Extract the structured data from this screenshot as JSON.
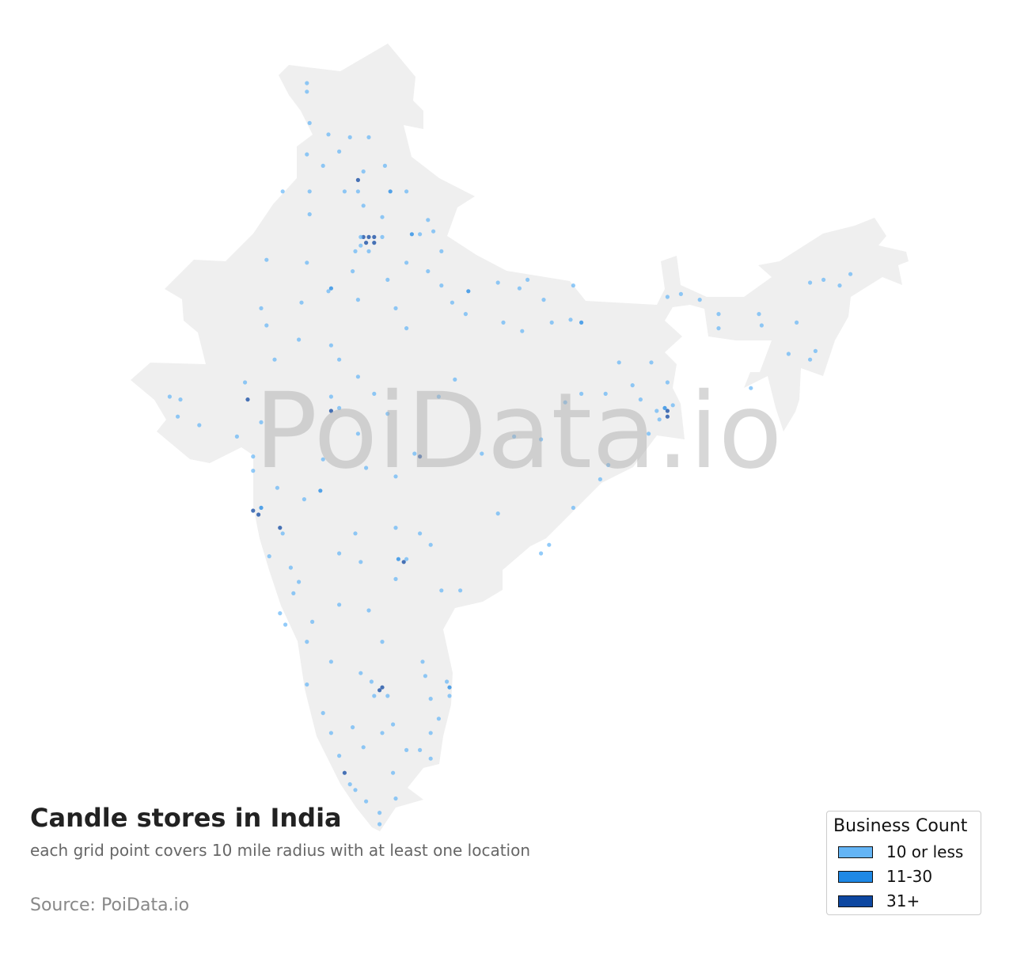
{
  "title": "Candle stores in India",
  "subtitle": "each grid point covers 10 mile radius with at least one location",
  "source": "Source: PoiData.io",
  "watermark": "PoiData.io",
  "colors": {
    "land": "#efefef",
    "level1": "#64b5f6",
    "level2": "#1e88e5",
    "level3": "#0d47a1"
  },
  "legend": {
    "title": "Business Count",
    "items": [
      {
        "label": "10 or less",
        "color": "#64b5f6"
      },
      {
        "label": "11-30",
        "color": "#1e88e5"
      },
      {
        "label": "31+",
        "color": "#0d47a1"
      }
    ]
  },
  "points_lon_lat_level": [
    [
      74.9,
      34.1,
      1
    ],
    [
      74.9,
      33.8,
      1
    ],
    [
      75.0,
      32.7,
      1
    ],
    [
      75.7,
      32.3,
      1
    ],
    [
      76.5,
      32.2,
      1
    ],
    [
      77.2,
      32.2,
      1
    ],
    [
      74.9,
      31.6,
      1
    ],
    [
      75.5,
      31.2,
      1
    ],
    [
      76.1,
      31.7,
      1
    ],
    [
      76.8,
      30.7,
      3
    ],
    [
      77.0,
      31.0,
      1
    ],
    [
      77.8,
      31.2,
      1
    ],
    [
      74.0,
      30.3,
      1
    ],
    [
      75.0,
      30.3,
      1
    ],
    [
      76.3,
      30.3,
      1
    ],
    [
      76.8,
      30.3,
      1
    ],
    [
      78.0,
      30.3,
      2
    ],
    [
      78.6,
      30.3,
      1
    ],
    [
      77.0,
      29.8,
      1
    ],
    [
      75.0,
      29.5,
      1
    ],
    [
      77.7,
      29.4,
      1
    ],
    [
      79.4,
      29.3,
      1
    ],
    [
      79.6,
      28.9,
      1
    ],
    [
      77.0,
      28.7,
      3
    ],
    [
      77.2,
      28.7,
      3
    ],
    [
      77.4,
      28.7,
      3
    ],
    [
      77.1,
      28.5,
      3
    ],
    [
      77.4,
      28.5,
      3
    ],
    [
      76.9,
      28.4,
      1
    ],
    [
      77.7,
      28.7,
      1
    ],
    [
      76.9,
      28.7,
      1
    ],
    [
      77.2,
      28.2,
      1
    ],
    [
      76.7,
      28.2,
      1
    ],
    [
      78.8,
      28.8,
      2
    ],
    [
      79.1,
      28.8,
      1
    ],
    [
      79.9,
      28.2,
      1
    ],
    [
      73.4,
      27.9,
      1
    ],
    [
      74.9,
      27.8,
      1
    ],
    [
      76.6,
      27.5,
      1
    ],
    [
      77.9,
      27.2,
      1
    ],
    [
      78.6,
      27.8,
      1
    ],
    [
      79.4,
      27.5,
      1
    ],
    [
      75.8,
      26.9,
      2
    ],
    [
      75.7,
      26.8,
      1
    ],
    [
      73.2,
      26.2,
      1
    ],
    [
      74.7,
      26.4,
      1
    ],
    [
      76.8,
      26.5,
      1
    ],
    [
      78.2,
      26.2,
      1
    ],
    [
      79.9,
      27.0,
      1
    ],
    [
      80.9,
      26.8,
      2
    ],
    [
      80.3,
      26.4,
      1
    ],
    [
      82.0,
      27.1,
      1
    ],
    [
      83.1,
      27.2,
      1
    ],
    [
      82.8,
      26.9,
      1
    ],
    [
      83.7,
      26.5,
      1
    ],
    [
      84.8,
      27.0,
      1
    ],
    [
      85.1,
      25.7,
      2
    ],
    [
      84.7,
      25.8,
      1
    ],
    [
      84.0,
      25.7,
      1
    ],
    [
      82.9,
      25.4,
      1
    ],
    [
      82.2,
      25.7,
      1
    ],
    [
      80.8,
      26.0,
      1
    ],
    [
      78.6,
      25.5,
      1
    ],
    [
      73.4,
      25.6,
      1
    ],
    [
      74.6,
      25.1,
      1
    ],
    [
      75.8,
      24.9,
      1
    ],
    [
      73.7,
      24.4,
      1
    ],
    [
      76.1,
      24.4,
      1
    ],
    [
      76.8,
      23.8,
      1
    ],
    [
      77.4,
      23.2,
      1
    ],
    [
      75.8,
      23.1,
      1
    ],
    [
      72.6,
      23.6,
      1
    ],
    [
      69.8,
      23.1,
      1
    ],
    [
      70.2,
      23.0,
      1
    ],
    [
      70.9,
      22.1,
      1
    ],
    [
      70.1,
      22.4,
      1
    ],
    [
      72.7,
      23.0,
      3
    ],
    [
      73.2,
      22.2,
      1
    ],
    [
      72.3,
      21.7,
      1
    ],
    [
      72.9,
      21.0,
      1
    ],
    [
      72.9,
      20.5,
      1
    ],
    [
      73.8,
      19.9,
      1
    ],
    [
      72.9,
      19.1,
      3
    ],
    [
      73.1,
      18.96,
      3
    ],
    [
      73.2,
      19.2,
      2
    ],
    [
      73.9,
      18.5,
      3
    ],
    [
      74.0,
      18.3,
      1
    ],
    [
      75.4,
      19.8,
      2
    ],
    [
      74.8,
      19.5,
      1
    ],
    [
      75.8,
      22.6,
      3
    ],
    [
      76.1,
      22.7,
      1
    ],
    [
      76.8,
      21.8,
      1
    ],
    [
      77.9,
      22.5,
      1
    ],
    [
      75.5,
      20.9,
      1
    ],
    [
      77.1,
      20.6,
      1
    ],
    [
      79.1,
      21.0,
      3
    ],
    [
      78.9,
      21.1,
      1
    ],
    [
      78.2,
      20.3,
      1
    ],
    [
      79.8,
      23.1,
      1
    ],
    [
      80.4,
      23.7,
      1
    ],
    [
      81.4,
      21.1,
      1
    ],
    [
      82.6,
      21.7,
      1
    ],
    [
      83.6,
      21.6,
      1
    ],
    [
      84.5,
      22.9,
      1
    ],
    [
      85.1,
      23.2,
      1
    ],
    [
      86.0,
      23.2,
      1
    ],
    [
      87.0,
      23.5,
      1
    ],
    [
      88.3,
      22.6,
      3
    ],
    [
      88.3,
      22.4,
      3
    ],
    [
      88.2,
      22.7,
      2
    ],
    [
      87.9,
      22.6,
      1
    ],
    [
      88.0,
      22.3,
      1
    ],
    [
      88.5,
      22.8,
      1
    ],
    [
      88.3,
      23.6,
      1
    ],
    [
      87.7,
      24.3,
      1
    ],
    [
      86.5,
      24.3,
      1
    ],
    [
      87.3,
      23.0,
      1
    ],
    [
      87.6,
      21.8,
      1
    ],
    [
      86.1,
      20.7,
      1
    ],
    [
      85.8,
      20.2,
      1
    ],
    [
      84.8,
      19.2,
      1
    ],
    [
      82.0,
      19.0,
      1
    ],
    [
      83.9,
      17.9,
      1
    ],
    [
      83.6,
      17.6,
      1
    ],
    [
      80.6,
      16.3,
      1
    ],
    [
      79.9,
      16.3,
      1
    ],
    [
      78.5,
      17.3,
      3
    ],
    [
      78.3,
      17.4,
      2
    ],
    [
      78.6,
      17.4,
      1
    ],
    [
      78.2,
      16.7,
      1
    ],
    [
      78.2,
      18.5,
      1
    ],
    [
      79.1,
      18.3,
      1
    ],
    [
      79.5,
      17.9,
      1
    ],
    [
      76.9,
      17.3,
      1
    ],
    [
      76.7,
      18.3,
      1
    ],
    [
      76.1,
      17.6,
      1
    ],
    [
      73.5,
      17.5,
      1
    ],
    [
      74.3,
      17.1,
      1
    ],
    [
      74.6,
      16.6,
      1
    ],
    [
      74.4,
      16.2,
      1
    ],
    [
      73.9,
      15.5,
      1
    ],
    [
      74.1,
      15.1,
      1
    ],
    [
      75.1,
      15.2,
      1
    ],
    [
      76.1,
      15.8,
      1
    ],
    [
      77.2,
      15.6,
      1
    ],
    [
      77.7,
      14.5,
      1
    ],
    [
      74.9,
      14.5,
      1
    ],
    [
      75.8,
      13.8,
      1
    ],
    [
      74.9,
      13.0,
      1
    ],
    [
      77.6,
      12.8,
      3
    ],
    [
      77.7,
      12.9,
      3
    ],
    [
      77.3,
      13.1,
      1
    ],
    [
      77.9,
      12.6,
      1
    ],
    [
      77.4,
      12.6,
      1
    ],
    [
      80.2,
      12.9,
      2
    ],
    [
      80.1,
      13.1,
      1
    ],
    [
      80.2,
      12.6,
      1
    ],
    [
      79.2,
      13.8,
      1
    ],
    [
      79.3,
      13.3,
      1
    ],
    [
      79.5,
      12.5,
      1
    ],
    [
      79.8,
      11.8,
      1
    ],
    [
      79.5,
      11.3,
      1
    ],
    [
      79.1,
      10.7,
      1
    ],
    [
      78.6,
      10.7,
      1
    ],
    [
      78.1,
      11.6,
      1
    ],
    [
      77.7,
      11.3,
      1
    ],
    [
      77.0,
      10.8,
      1
    ],
    [
      76.6,
      11.5,
      1
    ],
    [
      75.5,
      12.0,
      1
    ],
    [
      75.8,
      11.3,
      1
    ],
    [
      76.1,
      10.5,
      1
    ],
    [
      76.3,
      9.9,
      3
    ],
    [
      76.5,
      9.5,
      1
    ],
    [
      76.7,
      9.3,
      1
    ],
    [
      77.1,
      8.9,
      1
    ],
    [
      77.6,
      8.5,
      1
    ],
    [
      77.6,
      8.1,
      1
    ],
    [
      78.1,
      9.9,
      1
    ],
    [
      78.2,
      9.0,
      1
    ],
    [
      79.5,
      10.4,
      1
    ],
    [
      76.9,
      13.4,
      1
    ],
    [
      88.3,
      26.6,
      1
    ],
    [
      88.8,
      26.7,
      1
    ],
    [
      89.5,
      26.5,
      1
    ],
    [
      90.2,
      26.0,
      1
    ],
    [
      90.2,
      25.5,
      1
    ],
    [
      91.7,
      26.0,
      1
    ],
    [
      91.8,
      25.6,
      1
    ],
    [
      93.1,
      25.7,
      1
    ],
    [
      93.8,
      24.7,
      1
    ],
    [
      93.6,
      27.1,
      1
    ],
    [
      94.1,
      27.2,
      1
    ],
    [
      95.1,
      27.4,
      1
    ],
    [
      94.7,
      27.0,
      1
    ],
    [
      92.8,
      24.6,
      1
    ],
    [
      91.4,
      23.4,
      1
    ],
    [
      93.6,
      24.4,
      1
    ]
  ]
}
